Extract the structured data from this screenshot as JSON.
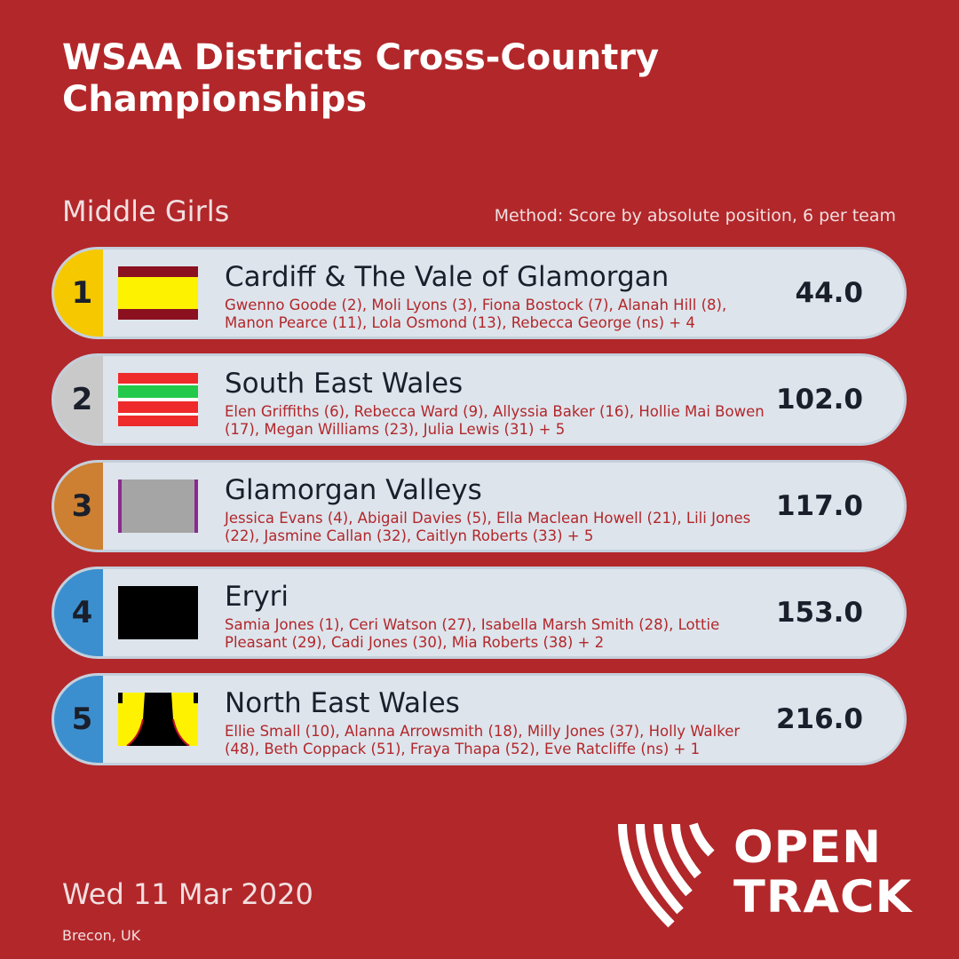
{
  "title": "WSAA Districts Cross-Country Championships",
  "event": "Middle Girls",
  "method": "Method: Score by absolute position, 6 per team",
  "date": "Wed 11 Mar 2020",
  "location": "Brecon, UK",
  "logo": {
    "line1": "OPEN",
    "line2": "TRACK",
    "icon": "open-track-logo-icon"
  },
  "colors": {
    "background": "#b2272a",
    "row_bg": "#dde4ec",
    "rank_gold": "#f5c800",
    "rank_silver": "#c9c9c9",
    "rank_bronze": "#cd7f32",
    "rank_other": "#3c8fcf"
  },
  "teams": [
    {
      "rank": "1",
      "name": "Cardiff & The Vale of Glamorgan",
      "members": "Gwenno Goode (2), Moli Lyons (3), Fiona Bostock (7), Alanah Hill (8), Manon Pearce (11), Lola Osmond (13), Rebecca George (ns) + 4",
      "score": "44.0",
      "flag_icon": "cardiff-vale-flag-icon"
    },
    {
      "rank": "2",
      "name": "South East Wales",
      "members": "Elen Griffiths (6), Rebecca Ward (9), Allyssia Baker (16), Hollie Mai Bowen (17), Megan Williams (23), Julia Lewis (31) + 5",
      "score": "102.0",
      "flag_icon": "south-east-wales-flag-icon"
    },
    {
      "rank": "3",
      "name": "Glamorgan Valleys",
      "members": "Jessica Evans (4), Abigail Davies (5), Ella Maclean Howell (21), Lili Jones (22), Jasmine Callan (32), Caitlyn Roberts (33) + 5",
      "score": "117.0",
      "flag_icon": "glamorgan-valleys-flag-icon"
    },
    {
      "rank": "4",
      "name": "Eryri",
      "members": "Samia Jones (1), Ceri Watson (27), Isabella Marsh Smith (28), Lottie Pleasant (29), Cadi Jones (30), Mia Roberts (38) + 2",
      "score": "153.0",
      "flag_icon": "eryri-flag-icon"
    },
    {
      "rank": "5",
      "name": "North East Wales",
      "members": "Ellie Small (10), Alanna Arrowsmith (18), Milly Jones (37), Holly Walker (48), Beth Coppack (51), Fraya Thapa (52), Eve Ratcliffe (ns) + 1",
      "score": "216.0",
      "flag_icon": "north-east-wales-flag-icon"
    }
  ]
}
